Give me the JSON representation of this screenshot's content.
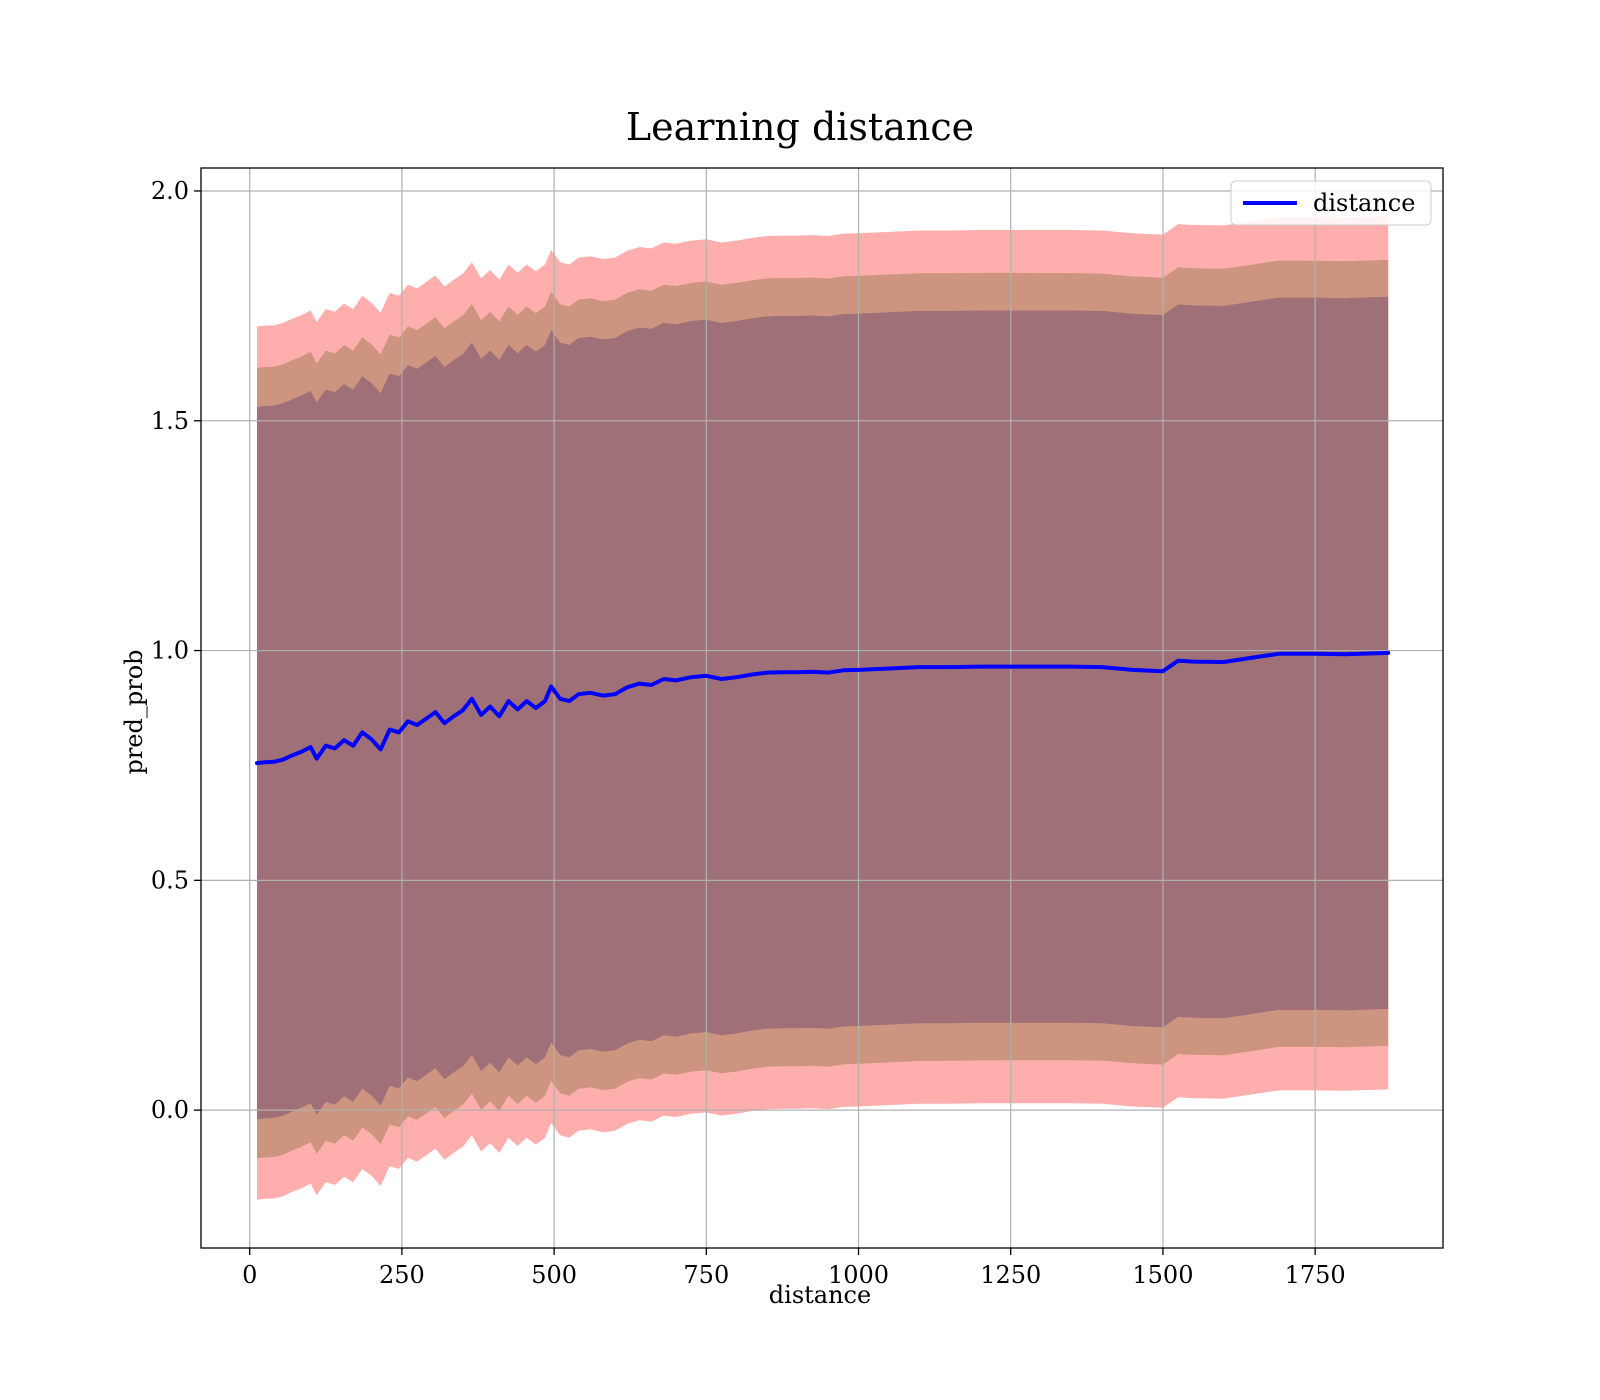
{
  "chart_data": {
    "type": "line",
    "title": "Learning distance",
    "xlabel": "distance",
    "ylabel": "pred_prob",
    "xlim": [
      -80,
      1960
    ],
    "ylim": [
      -0.3,
      2.05
    ],
    "xticks": [
      0,
      250,
      500,
      750,
      1000,
      1250,
      1500,
      1750
    ],
    "xtick_labels": [
      "0",
      "250",
      "500",
      "750",
      "1000",
      "1250",
      "1500",
      "1750"
    ],
    "yticks": [
      0.0,
      0.5,
      1.0,
      1.5,
      2.0
    ],
    "ytick_labels": [
      "0.0",
      "0.5",
      "1.0",
      "1.5",
      "2.0"
    ],
    "grid": true,
    "legend": {
      "position": "top-right",
      "entries": [
        "distance"
      ]
    },
    "colors": {
      "line": "#0000ff",
      "band_outer": "#ff9a9a",
      "band_middle": "#c8927a",
      "band_inner": "#a07078",
      "grid": "#b0b0b0"
    },
    "series": [
      {
        "name": "distance",
        "x": [
          12,
          25,
          40,
          55,
          70,
          85,
          100,
          110,
          125,
          140,
          155,
          170,
          185,
          200,
          215,
          230,
          245,
          260,
          275,
          290,
          305,
          320,
          335,
          350,
          365,
          380,
          395,
          410,
          425,
          440,
          455,
          470,
          485,
          495,
          510,
          525,
          540,
          560,
          580,
          600,
          620,
          640,
          660,
          680,
          700,
          725,
          750,
          775,
          800,
          825,
          850,
          875,
          900,
          925,
          950,
          975,
          1000,
          1050,
          1100,
          1150,
          1200,
          1250,
          1300,
          1350,
          1400,
          1450,
          1500,
          1525,
          1550,
          1600,
          1650,
          1690,
          1750,
          1800,
          1870
        ],
        "values": [
          0.755,
          0.757,
          0.758,
          0.763,
          0.772,
          0.78,
          0.79,
          0.765,
          0.793,
          0.787,
          0.805,
          0.793,
          0.822,
          0.807,
          0.785,
          0.828,
          0.822,
          0.846,
          0.838,
          0.852,
          0.866,
          0.842,
          0.857,
          0.87,
          0.895,
          0.86,
          0.878,
          0.857,
          0.89,
          0.872,
          0.89,
          0.875,
          0.89,
          0.922,
          0.895,
          0.89,
          0.905,
          0.908,
          0.902,
          0.905,
          0.92,
          0.928,
          0.925,
          0.938,
          0.935,
          0.942,
          0.945,
          0.938,
          0.942,
          0.948,
          0.952,
          0.953,
          0.953,
          0.954,
          0.952,
          0.957,
          0.958,
          0.961,
          0.964,
          0.964,
          0.965,
          0.965,
          0.965,
          0.965,
          0.964,
          0.958,
          0.955,
          0.978,
          0.976,
          0.975,
          0.985,
          0.993,
          0.993,
          0.992,
          0.995
        ],
        "bands": [
          {
            "half_width_start": 0.95,
            "half_width_end": 0.95
          },
          {
            "half_width_start": 0.86,
            "half_width_end": 0.855
          },
          {
            "half_width_start": 0.775,
            "half_width_end": 0.775
          }
        ]
      }
    ]
  }
}
